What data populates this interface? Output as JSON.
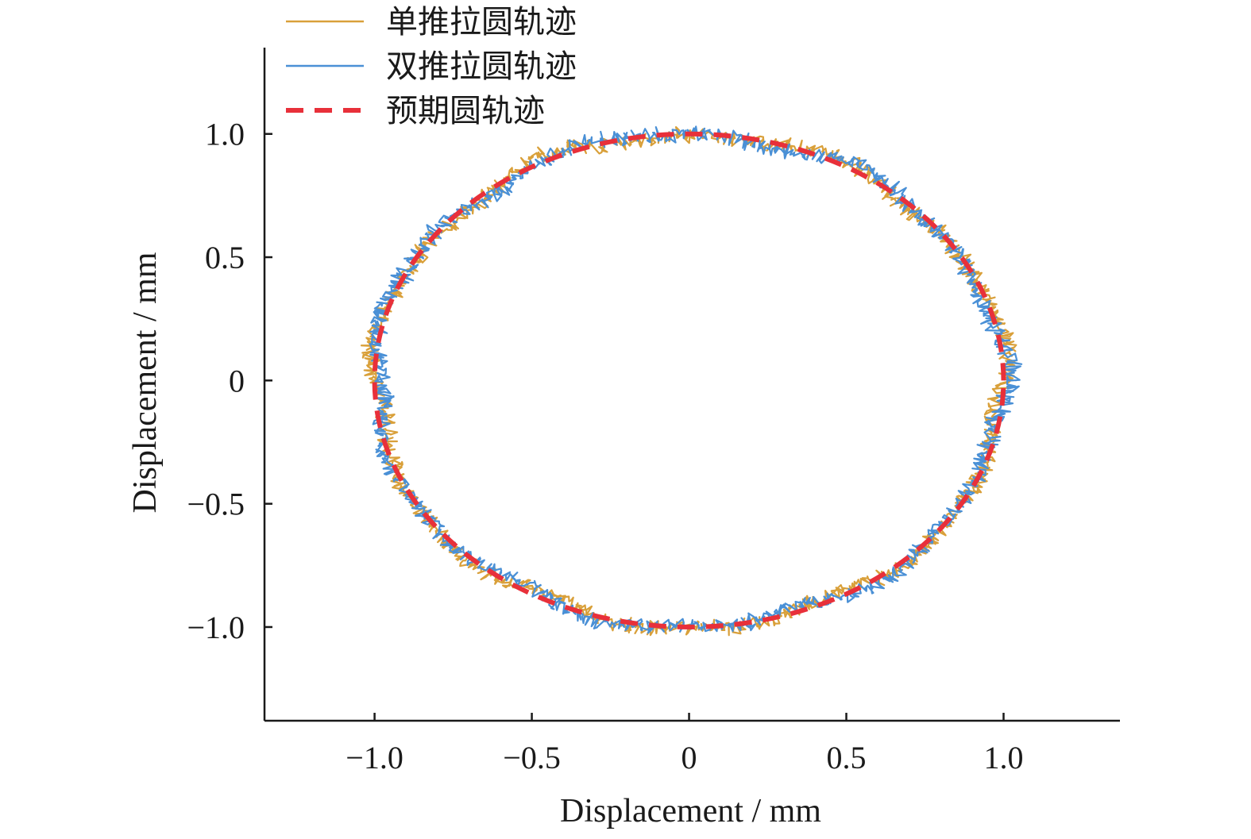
{
  "chart_data": {
    "type": "line",
    "xlabel": "Displacement / mm",
    "ylabel": "Displacement / mm",
    "xlim": [
      -1.35,
      1.37
    ],
    "ylim": [
      -1.38,
      1.35
    ],
    "xticks": [
      {
        "value": -1.0,
        "label": "−1.0"
      },
      {
        "value": -0.5,
        "label": "−0.5"
      },
      {
        "value": 0,
        "label": "0"
      },
      {
        "value": 0.5,
        "label": "0.5"
      },
      {
        "value": 1.0,
        "label": "1.0"
      }
    ],
    "yticks": [
      {
        "value": -1.0,
        "label": "−1.0"
      },
      {
        "value": -0.5,
        "label": "−0.5"
      },
      {
        "value": 0,
        "label": "0"
      },
      {
        "value": 0.5,
        "label": "0.5"
      },
      {
        "value": 1.0,
        "label": "1.0"
      }
    ],
    "grid": false,
    "legend_position": "top-left",
    "series": [
      {
        "name": "单推拉圆轨迹",
        "shape": "circle",
        "center": [
          0.0,
          0.0
        ],
        "radius": 1.0,
        "noise_amplitude": 0.03,
        "color": "#D9A03A",
        "style": "solid"
      },
      {
        "name": "双推拉圆轨迹",
        "shape": "circle",
        "center": [
          0.0,
          0.0
        ],
        "radius": 1.0,
        "noise_amplitude": 0.03,
        "color": "#4A90D6",
        "style": "solid"
      },
      {
        "name": "预期圆轨迹",
        "shape": "circle",
        "center": [
          0.0,
          0.0
        ],
        "radius": 1.0,
        "noise_amplitude": 0,
        "color": "#E8303A",
        "style": "dashed"
      }
    ]
  }
}
